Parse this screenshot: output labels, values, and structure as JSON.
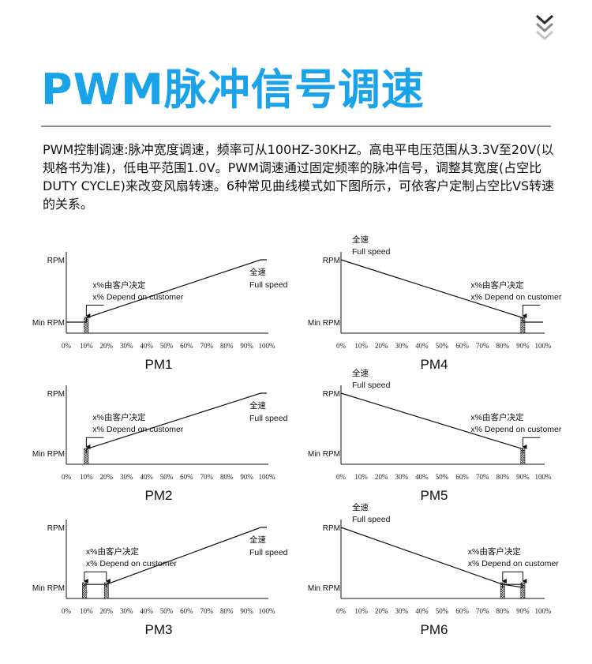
{
  "header": {
    "title": "PWM脉冲信号调速",
    "chevron_icon": "double-chevron-down-icon",
    "accent_color": "#1aa3e8"
  },
  "description": "PWM控制调速:脉冲宽度调速，频率可从100HZ-30KHZ。高电平电压范围从3.3V至20V(以规格书为准)，低电平范围1.0V。PWM调速通过固定频率的脉冲信号，调整其宽度(占空比DUTY CYCLE)来改变风扇转速。6种常见曲线模式如下图所示，可依客户定制占空比VS转速的关系。",
  "chart_data": [
    {
      "name": "PM1",
      "type": "line",
      "x_ticks": [
        "0%",
        "10%",
        "20%",
        "30%",
        "40%",
        "50%",
        "60%",
        "70%",
        "80%",
        "90%",
        "100%"
      ],
      "y_labels": {
        "top": "RPM",
        "bottom": "Min RPM"
      },
      "points": [
        [
          0,
          0
        ],
        [
          10,
          0
        ],
        [
          10,
          0.07
        ],
        [
          97,
          1
        ],
        [
          100,
          1
        ]
      ],
      "hatch": [
        [
          9,
          11
        ]
      ],
      "annotation": {
        "line1": "x%由客户决定",
        "line2": "x%  Depend on customer",
        "marker": "single",
        "pos": 10
      },
      "full_speed": {
        "cn": "全速",
        "en": "Full speed",
        "side": "right"
      }
    },
    {
      "name": "PM4",
      "type": "line",
      "x_ticks": [
        "0%",
        "10%",
        "20%",
        "30%",
        "40%",
        "50%",
        "60%",
        "70%",
        "80%",
        "90%",
        "100%"
      ],
      "y_labels": {
        "top": "RPM",
        "bottom": "Min RPM"
      },
      "points": [
        [
          0,
          1
        ],
        [
          90,
          0.07
        ],
        [
          90,
          0
        ],
        [
          100,
          0
        ]
      ],
      "hatch": [
        [
          89,
          91
        ]
      ],
      "annotation": {
        "line1": "x%由客户决定",
        "line2": "x%  Depend on customer",
        "marker": "single",
        "pos": 90
      },
      "full_speed": {
        "cn": "全速",
        "en": "Full speed",
        "side": "left"
      }
    },
    {
      "name": "PM2",
      "type": "line",
      "x_ticks": [
        "0%",
        "10%",
        "20%",
        "30%",
        "40%",
        "50%",
        "60%",
        "70%",
        "80%",
        "90%",
        "100%"
      ],
      "y_labels": {
        "top": "RPM",
        "bottom": "Min RPM"
      },
      "points": [
        [
          10,
          0
        ],
        [
          10,
          0.07
        ],
        [
          97,
          1
        ],
        [
          100,
          1
        ]
      ],
      "hatch": [
        [
          9,
          11
        ]
      ],
      "annotation": {
        "line1": "x%由客户决定",
        "line2": "x%  Depend on customer",
        "marker": "single",
        "pos": 10
      },
      "full_speed": {
        "cn": "全速",
        "en": "Full speed",
        "side": "right"
      }
    },
    {
      "name": "PM5",
      "type": "line",
      "x_ticks": [
        "0%",
        "10%",
        "20%",
        "30%",
        "40%",
        "50%",
        "60%",
        "70%",
        "80%",
        "90%",
        "100%"
      ],
      "y_labels": {
        "top": "RPM",
        "bottom": "Min RPM"
      },
      "points": [
        [
          0,
          1
        ],
        [
          90,
          0.07
        ],
        [
          90,
          0
        ]
      ],
      "hatch": [
        [
          89,
          91
        ]
      ],
      "annotation": {
        "line1": "x%由客户决定",
        "line2": "x%  Depend on customer",
        "marker": "single",
        "pos": 90
      },
      "full_speed": {
        "cn": "全速",
        "en": "Full speed",
        "side": "left"
      }
    },
    {
      "name": "PM3",
      "type": "line",
      "x_ticks": [
        "0%",
        "10%",
        "20%",
        "30%",
        "40%",
        "50%",
        "60%",
        "70%",
        "80%",
        "90%",
        "100%"
      ],
      "y_labels": {
        "top": "RPM",
        "bottom": "Min RPM"
      },
      "points": [
        [
          9,
          0
        ],
        [
          9,
          0.05
        ],
        [
          20,
          0.05
        ],
        [
          20,
          0
        ],
        [
          20,
          0.05
        ],
        [
          97,
          1
        ],
        [
          100,
          1
        ]
      ],
      "hatch": [
        [
          8,
          10
        ],
        [
          19,
          21
        ]
      ],
      "annotation": {
        "line1": "x%由客户决定",
        "line2": "x%  Depend on customer",
        "marker": "range",
        "pos": 9,
        "pos2": 20
      },
      "full_speed": {
        "cn": "全速",
        "en": "Full speed",
        "side": "right"
      }
    },
    {
      "name": "PM6",
      "type": "line",
      "x_ticks": [
        "0%",
        "10%",
        "20%",
        "30%",
        "40%",
        "50%",
        "60%",
        "70%",
        "80%",
        "90%",
        "100%"
      ],
      "y_labels": {
        "top": "RPM",
        "bottom": "Min RPM"
      },
      "points": [
        [
          0,
          1
        ],
        [
          80,
          0.05
        ],
        [
          90,
          0.05
        ],
        [
          90,
          0
        ],
        [
          80,
          0.05
        ],
        [
          80,
          0
        ]
      ],
      "hatch": [
        [
          79,
          81
        ],
        [
          89,
          91
        ]
      ],
      "annotation": {
        "line1": "x%由客户决定",
        "line2": "x%  Depend on customer",
        "marker": "range",
        "pos": 80,
        "pos2": 90
      },
      "full_speed": {
        "cn": "全速",
        "en": "Full speed",
        "side": "left"
      }
    }
  ]
}
